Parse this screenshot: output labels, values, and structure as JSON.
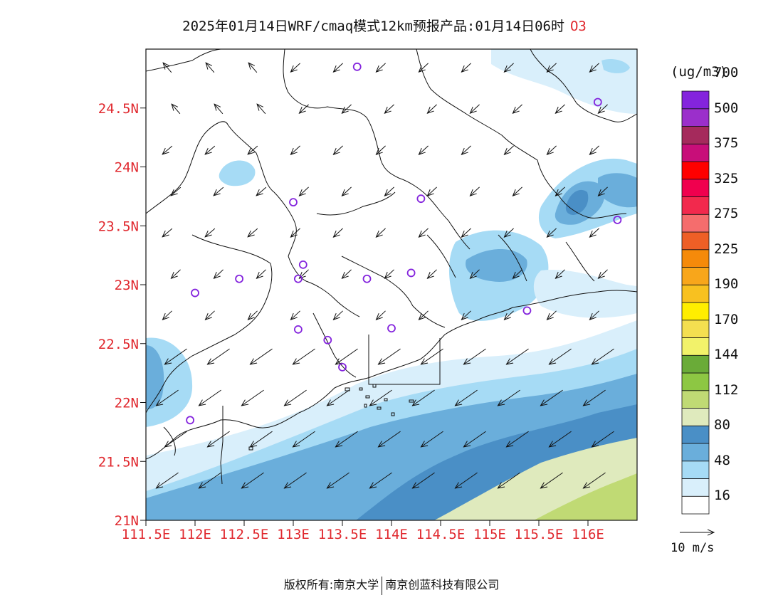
{
  "title": {
    "text": "2025年01月14日WRF/cmaq模式12km预报产品:01月14日06时",
    "pollutant": "O3"
  },
  "map": {
    "lon_range": [
      111.5,
      116.5
    ],
    "lat_range": [
      21.0,
      25.0
    ],
    "lon_ticks": [
      111.5,
      112.0,
      112.5,
      113.0,
      113.5,
      114.0,
      114.5,
      115.0,
      115.5,
      116.0
    ],
    "lon_labels": [
      "111.5E",
      "112E",
      "112.5E",
      "113E",
      "113.5E",
      "114E",
      "114.5E",
      "115E",
      "115.5E",
      "116E"
    ],
    "lat_ticks": [
      21.0,
      21.5,
      22.0,
      22.5,
      23.0,
      23.5,
      24.0,
      24.5
    ],
    "lat_labels": [
      "21N",
      "21.5N",
      "22N",
      "22.5N",
      "23N",
      "23.5N",
      "24N",
      "24.5N"
    ],
    "tick_label_color": "#e0282e"
  },
  "colorbar": {
    "unit": "(ug/m3)",
    "labels": [
      "16",
      "48",
      "80",
      "112",
      "144",
      "170",
      "190",
      "225",
      "275",
      "325",
      "375",
      "500",
      "700"
    ],
    "colors": [
      "#ffffff",
      "#d9effb",
      "#a6dbf5",
      "#6aaedb",
      "#4a8fc6",
      "#dfeabd",
      "#c0da74",
      "#8dc743",
      "#6aab38",
      "#f2f26a",
      "#f4df50",
      "#ffee00",
      "#f8c120",
      "#f8a61b",
      "#f58a0a",
      "#ee5f26",
      "#f56d6d",
      "#f2294d",
      "#f0004e",
      "#ff0000",
      "#c80e79",
      "#a52a5c",
      "#9b2fcb",
      "#8424dd"
    ]
  },
  "wind_legend": {
    "label": "10 m/s"
  },
  "stations": [
    {
      "lon": 113.65,
      "lat": 24.85
    },
    {
      "lon": 116.1,
      "lat": 24.55
    },
    {
      "lon": 113.0,
      "lat": 23.7
    },
    {
      "lon": 114.3,
      "lat": 23.73
    },
    {
      "lon": 116.3,
      "lat": 23.55
    },
    {
      "lon": 113.1,
      "lat": 23.17
    },
    {
      "lon": 112.45,
      "lat": 23.05
    },
    {
      "lon": 113.05,
      "lat": 23.05
    },
    {
      "lon": 113.75,
      "lat": 23.05
    },
    {
      "lon": 114.2,
      "lat": 23.1
    },
    {
      "lon": 112.0,
      "lat": 22.93
    },
    {
      "lon": 115.38,
      "lat": 22.78
    },
    {
      "lon": 113.05,
      "lat": 22.62
    },
    {
      "lon": 113.35,
      "lat": 22.53
    },
    {
      "lon": 114.0,
      "lat": 22.63
    },
    {
      "lon": 113.5,
      "lat": 22.3
    },
    {
      "lon": 111.95,
      "lat": 21.85
    }
  ],
  "copyright": {
    "left": "版权所有:南京大学",
    "right": "南京创蓝科技有限公司"
  }
}
